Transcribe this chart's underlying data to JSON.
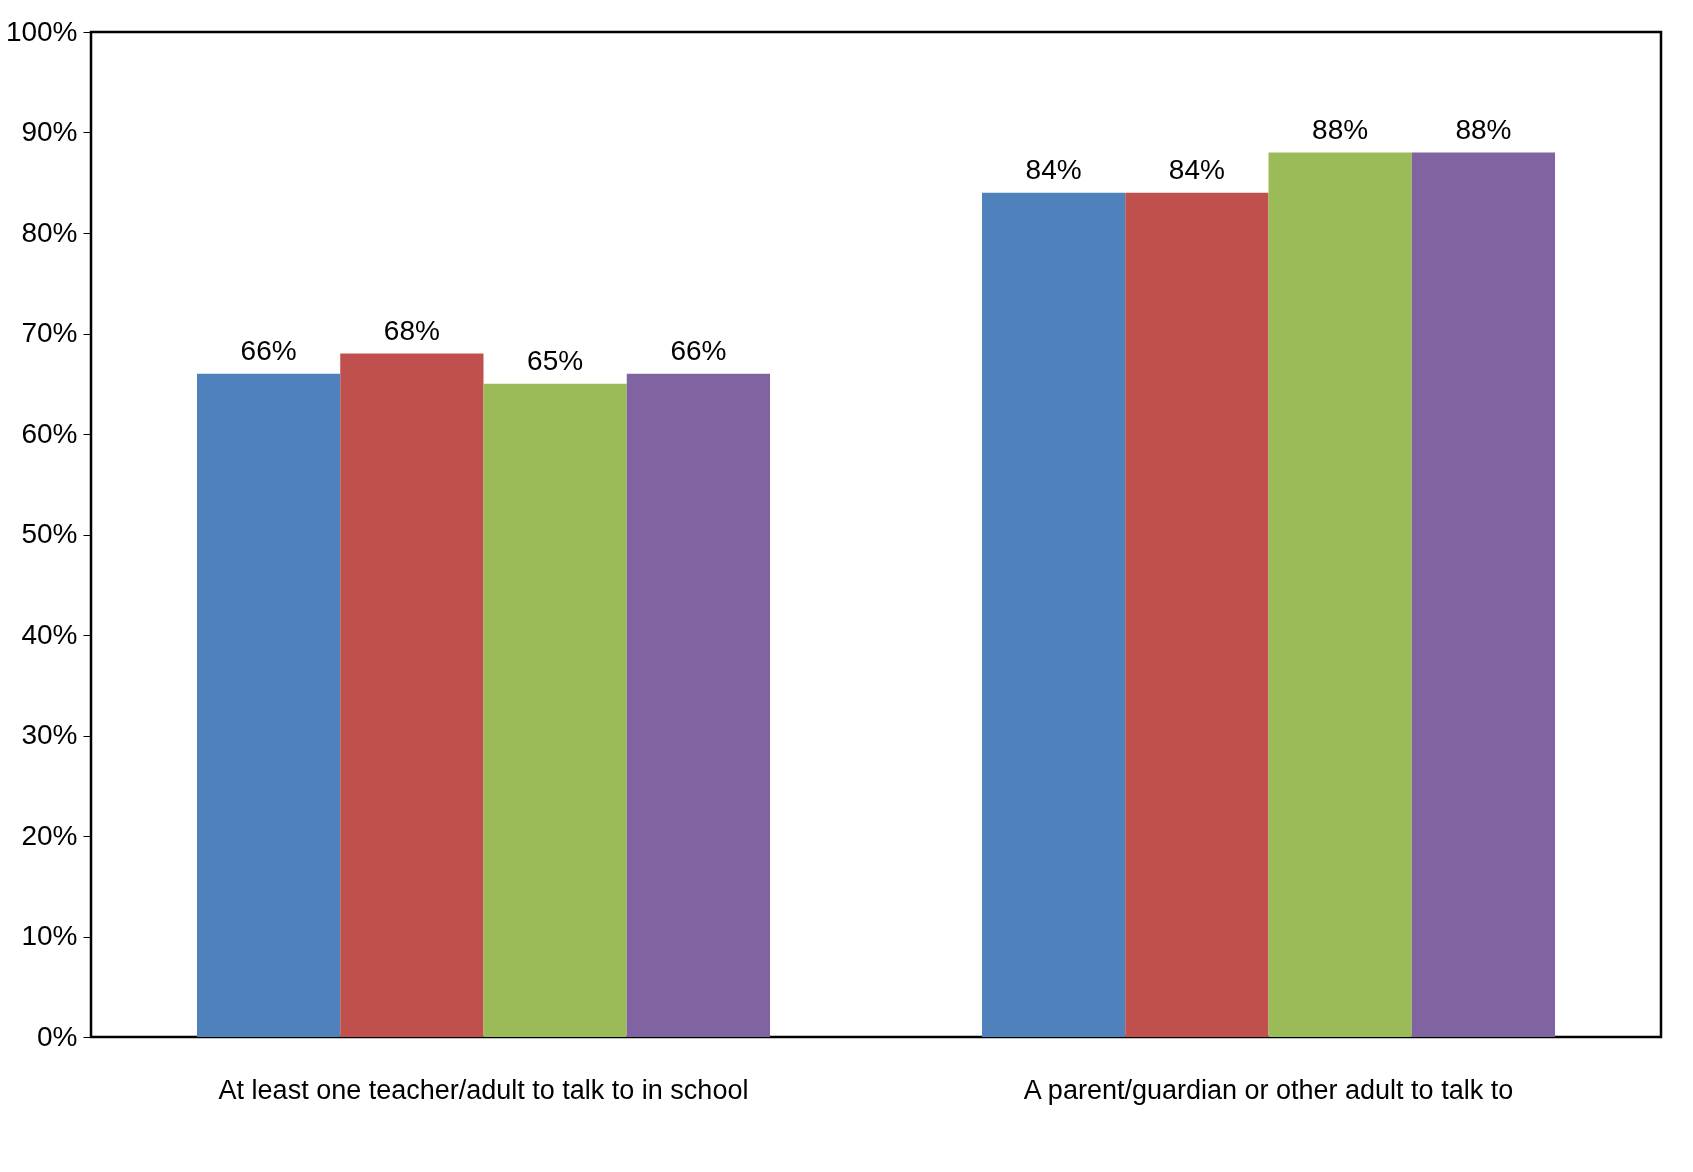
{
  "chart_data": {
    "type": "bar",
    "categories": [
      "At least one teacher/adult to talk to in school",
      "A parent/guardian or other adult to talk to"
    ],
    "series": [
      {
        "color": "#4f81bd",
        "values": [
          66,
          84
        ],
        "value_labels": [
          "66%",
          "84%"
        ]
      },
      {
        "color": "#c0504d",
        "values": [
          68,
          84
        ],
        "value_labels": [
          "68%",
          "84%"
        ]
      },
      {
        "color": "#9bbb59",
        "values": [
          65,
          88
        ],
        "value_labels": [
          "65%",
          "88%"
        ]
      },
      {
        "color": "#8064a2",
        "values": [
          66,
          88
        ],
        "value_labels": [
          "66%",
          "88%"
        ]
      }
    ],
    "ylim": [
      0,
      100
    ],
    "yticks": [
      {
        "value": 0,
        "label": "0%"
      },
      {
        "value": 10,
        "label": "10%"
      },
      {
        "value": 20,
        "label": "20%"
      },
      {
        "value": 30,
        "label": "30%"
      },
      {
        "value": 40,
        "label": "40%"
      },
      {
        "value": 50,
        "label": "50%"
      },
      {
        "value": 60,
        "label": "60%"
      },
      {
        "value": 70,
        "label": "70%"
      },
      {
        "value": 80,
        "label": "80%"
      },
      {
        "value": 90,
        "label": "90%"
      },
      {
        "value": 100,
        "label": "100%"
      }
    ],
    "grid": false
  }
}
